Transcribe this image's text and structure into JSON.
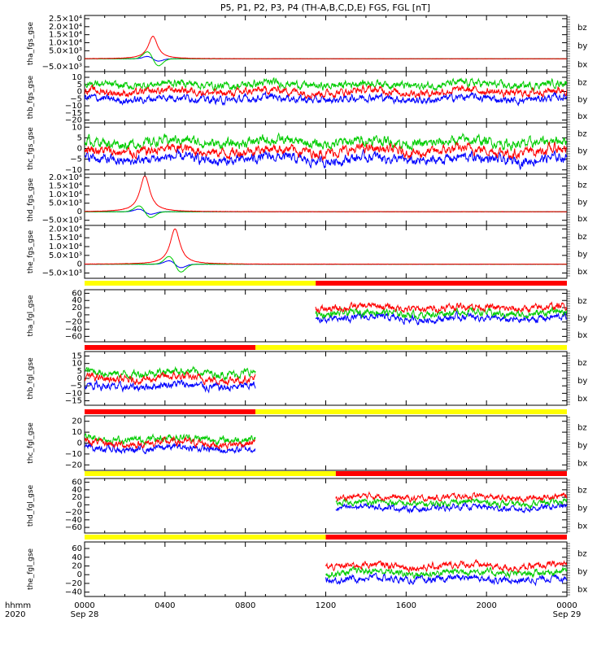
{
  "title": "P5, P1, P2, P3, P4 (TH-A,B,C,D,E) FGS, FGL [nT]",
  "colors": {
    "bx": "#0000ff",
    "by": "#00cc00",
    "bz": "#ff0000",
    "yellow": "#ffff00",
    "red": "#ff0000"
  },
  "bottom_labels": {
    "hhmm": "hhmm",
    "year": "2020"
  },
  "x_axis": {
    "range_hours": [
      0,
      24
    ],
    "ticks": [
      {
        "hour": 0,
        "label": "0000",
        "sub": "Sep 28"
      },
      {
        "hour": 4,
        "label": "0400",
        "sub": ""
      },
      {
        "hour": 8,
        "label": "0800",
        "sub": ""
      },
      {
        "hour": 12,
        "label": "1200",
        "sub": ""
      },
      {
        "hour": 16,
        "label": "1600",
        "sub": ""
      },
      {
        "hour": 20,
        "label": "2000",
        "sub": ""
      },
      {
        "hour": 24,
        "label": "0000",
        "sub": "Sep 29"
      }
    ]
  },
  "chart_data": [
    {
      "type": "line",
      "ylabel": "tha_fgs_gse",
      "ylim": [
        -8000,
        27000
      ],
      "ticks": [
        {
          "v": 25000,
          "t": "2.5×10⁴"
        },
        {
          "v": 20000,
          "t": "2.0×10⁴"
        },
        {
          "v": 15000,
          "t": "1.5×10⁴"
        },
        {
          "v": 10000,
          "t": "1.0×10⁴"
        },
        {
          "v": 5000,
          "t": "5.0×10³"
        },
        {
          "v": 0,
          "t": "0"
        },
        {
          "v": -5000,
          "t": "−5.0×10³"
        }
      ],
      "legend": [
        "bz",
        "by",
        "bx"
      ],
      "time_range": [
        0,
        24
      ],
      "peak": {
        "hour": 3.4,
        "width": 0.28,
        "bz": 14000,
        "by": -4500,
        "bx": -1500
      }
    },
    {
      "type": "line",
      "ylabel": "thb_fgs_gse",
      "ylim": [
        -22,
        14
      ],
      "ticks": [
        {
          "v": 10,
          "t": "10"
        },
        {
          "v": 5,
          "t": "5"
        },
        {
          "v": 0,
          "t": "0"
        },
        {
          "v": -5,
          "t": "−5"
        },
        {
          "v": -10,
          "t": "−10"
        },
        {
          "v": -15,
          "t": "−15"
        },
        {
          "v": -20,
          "t": "−20"
        }
      ],
      "legend": [
        "bz",
        "by",
        "bx"
      ],
      "time_range": [
        0,
        24
      ],
      "base": {
        "bz": 0,
        "by": 5,
        "bx": -5
      },
      "noise": 4
    },
    {
      "type": "line",
      "ylabel": "thc_fgs_gse",
      "ylim": [
        -12,
        12
      ],
      "ticks": [
        {
          "v": 10,
          "t": "10"
        },
        {
          "v": 5,
          "t": "5"
        },
        {
          "v": 0,
          "t": "0"
        },
        {
          "v": -5,
          "t": "−5"
        },
        {
          "v": -10,
          "t": "−10"
        }
      ],
      "legend": [
        "bz",
        "by",
        "bx"
      ],
      "time_range": [
        0,
        24
      ],
      "base": {
        "bz": -1,
        "by": 3,
        "bx": -5
      },
      "noise": 3.5
    },
    {
      "type": "line",
      "ylabel": "thd_fgs_gse",
      "ylim": [
        -8000,
        22000
      ],
      "ticks": [
        {
          "v": 20000,
          "t": "2.0×10⁴"
        },
        {
          "v": 15000,
          "t": "1.5×10⁴"
        },
        {
          "v": 10000,
          "t": "1.0×10⁴"
        },
        {
          "v": 5000,
          "t": "5.0×10³"
        },
        {
          "v": 0,
          "t": "0"
        },
        {
          "v": -5000,
          "t": "−5.0×10³"
        }
      ],
      "legend": [
        "bz",
        "by",
        "bx"
      ],
      "time_range": [
        0,
        24
      ],
      "peak": {
        "hour": 3.0,
        "width": 0.3,
        "bz": 21000,
        "by": -3500,
        "bx": -1500
      }
    },
    {
      "type": "line",
      "ylabel": "the_fgs_gse",
      "ylim": [
        -8000,
        22000
      ],
      "ticks": [
        {
          "v": 20000,
          "t": "2.0×10⁴"
        },
        {
          "v": 15000,
          "t": "1.5×10⁴"
        },
        {
          "v": 10000,
          "t": "1.0×10⁴"
        },
        {
          "v": 5000,
          "t": "5.0×10³"
        },
        {
          "v": 0,
          "t": "0"
        },
        {
          "v": -5000,
          "t": "−5.0×10³"
        }
      ],
      "legend": [
        "bz",
        "by",
        "bx"
      ],
      "time_range": [
        0,
        24
      ],
      "peak": {
        "hour": 4.5,
        "width": 0.3,
        "bz": 20000,
        "by": -4500,
        "bx": -2000
      }
    },
    {
      "type": "line",
      "ylabel": "tha_fgl_gse",
      "ylim": [
        -75,
        70
      ],
      "ticks": [
        {
          "v": 60,
          "t": "60"
        },
        {
          "v": 40,
          "t": "40"
        },
        {
          "v": 20,
          "t": "20"
        },
        {
          "v": 0,
          "t": "0"
        },
        {
          "v": -20,
          "t": "−20"
        },
        {
          "v": -40,
          "t": "−40"
        },
        {
          "v": -60,
          "t": "−60"
        }
      ],
      "legend": [
        "bz",
        "by",
        "bx"
      ],
      "time_range": [
        11.5,
        24
      ],
      "base": {
        "bz": 20,
        "by": 5,
        "bx": -10
      },
      "noise": 15,
      "bar": {
        "split_hour": 11.5,
        "left": "yellow",
        "right": "red"
      }
    },
    {
      "type": "line",
      "ylabel": "thb_fgl_gse",
      "ylim": [
        -18,
        18
      ],
      "ticks": [
        {
          "v": 15,
          "t": "15"
        },
        {
          "v": 10,
          "t": "10"
        },
        {
          "v": 5,
          "t": "5"
        },
        {
          "v": 0,
          "t": "0"
        },
        {
          "v": -5,
          "t": "−5"
        },
        {
          "v": -10,
          "t": "−10"
        },
        {
          "v": -15,
          "t": "−15"
        }
      ],
      "legend": [
        "bz",
        "by",
        "bx"
      ],
      "time_range": [
        0,
        8.5
      ],
      "base": {
        "bz": 0,
        "by": 4,
        "bx": -5
      },
      "noise": 4,
      "bar": {
        "split_hour": 8.5,
        "left": "red",
        "right": "yellow"
      }
    },
    {
      "type": "line",
      "ylabel": "thc_fgl_gse",
      "ylim": [
        -25,
        25
      ],
      "ticks": [
        {
          "v": 20,
          "t": "20"
        },
        {
          "v": 10,
          "t": "10"
        },
        {
          "v": 0,
          "t": "0"
        },
        {
          "v": -10,
          "t": "−10"
        },
        {
          "v": -20,
          "t": "−20"
        }
      ],
      "legend": [
        "bz",
        "by",
        "bx"
      ],
      "time_range": [
        0,
        8.5
      ],
      "base": {
        "bz": 0,
        "by": 4,
        "bx": -5
      },
      "noise": 5,
      "bar": {
        "split_hour": 8.5,
        "left": "red",
        "right": "yellow"
      }
    },
    {
      "type": "line",
      "ylabel": "thd_fgl_gse",
      "ylim": [
        -75,
        70
      ],
      "ticks": [
        {
          "v": 60,
          "t": "60"
        },
        {
          "v": 40,
          "t": "40"
        },
        {
          "v": 20,
          "t": "20"
        },
        {
          "v": 0,
          "t": "0"
        },
        {
          "v": -20,
          "t": "−20"
        },
        {
          "v": -40,
          "t": "−40"
        },
        {
          "v": -60,
          "t": "−60"
        }
      ],
      "legend": [
        "bz",
        "by",
        "bx"
      ],
      "time_range": [
        12.5,
        24
      ],
      "base": {
        "bz": 20,
        "by": 5,
        "bx": -8
      },
      "noise": 12,
      "bar": {
        "split_hour": 12.5,
        "left": "yellow",
        "right": "red"
      }
    },
    {
      "type": "line",
      "ylabel": "the_fgl_gse",
      "ylim": [
        -50,
        75
      ],
      "ticks": [
        {
          "v": 60,
          "t": "60"
        },
        {
          "v": 40,
          "t": "40"
        },
        {
          "v": 20,
          "t": "20"
        },
        {
          "v": 0,
          "t": "0"
        },
        {
          "v": -20,
          "t": "−20"
        },
        {
          "v": -40,
          "t": "−40"
        }
      ],
      "legend": [
        "bz",
        "by",
        "bx"
      ],
      "time_range": [
        12,
        24
      ],
      "base": {
        "bz": 20,
        "by": 5,
        "bx": -10
      },
      "noise": 12,
      "bar": {
        "split_hour": 12,
        "left": "yellow",
        "right": "red"
      }
    }
  ]
}
